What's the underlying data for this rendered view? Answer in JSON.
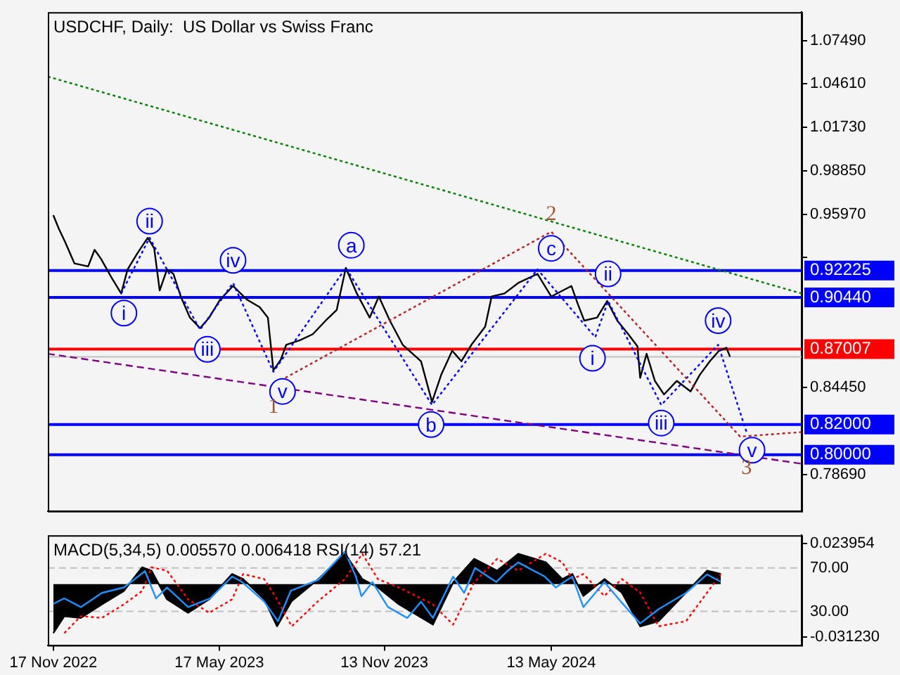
{
  "chart_data": [
    {
      "type": "line",
      "title": "USDCHF, Daily:  US Dollar vs Swiss Franc",
      "xlim": [
        "2022-11-11",
        "2025-02-10"
      ],
      "ylim": [
        0.7626,
        1.0938
      ],
      "yticks": [
        {
          "value": 1.0749,
          "label": "1.07490"
        },
        {
          "value": 1.0461,
          "label": "1.04610"
        },
        {
          "value": 1.0173,
          "label": "1.01730"
        },
        {
          "value": 0.9885,
          "label": "0.98850"
        },
        {
          "value": 0.9597,
          "label": "0.95970"
        },
        {
          "value": 0.9309,
          "label": null
        },
        {
          "value": 0.8445,
          "label": "0.84450"
        },
        {
          "value": 0.7869,
          "label": "0.78690"
        }
      ],
      "tick_labels": "y",
      "grid": false,
      "marker": "none",
      "series": [
        {
          "color": "#000000",
          "x": [
            "2022-11-17",
            "2022-11-23",
            "2022-11-30",
            "2022-12-10",
            "2022-12-25",
            "2023-01-01",
            "2023-01-08",
            "2023-01-20",
            "2023-01-30",
            "2023-02-06",
            "2023-02-17",
            "2023-02-28",
            "2023-03-07",
            "2023-03-13",
            "2023-03-21",
            "2023-03-28",
            "2023-04-05",
            "2023-04-15",
            "2023-04-26",
            "2023-05-06",
            "2023-05-18",
            "2023-06-01",
            "2023-06-16",
            "2023-06-30",
            "2023-07-09",
            "2023-07-15",
            "2023-07-23",
            "2023-07-29",
            "2023-08-13",
            "2023-08-27",
            "2023-09-10",
            "2023-09-22",
            "2023-10-02",
            "2023-10-14",
            "2023-10-28",
            "2023-11-07",
            "2023-11-19",
            "2023-12-03",
            "2023-12-23",
            "2024-01-04",
            "2024-01-14",
            "2024-01-26",
            "2024-02-05",
            "2024-02-16",
            "2024-03-02",
            "2024-03-09",
            "2024-03-23",
            "2024-04-07",
            "2024-04-28",
            "2024-05-13",
            "2024-06-04",
            "2024-06-11",
            "2024-06-18",
            "2024-07-02",
            "2024-07-13",
            "2024-07-24",
            "2024-08-05",
            "2024-08-15",
            "2024-08-18",
            "2024-08-25",
            "2024-09-03",
            "2024-09-13",
            "2024-09-27",
            "2024-10-12",
            "2024-10-22",
            "2024-11-02",
            "2024-11-12",
            "2024-11-20",
            "2024-11-24"
          ],
          "values": [
            0.959,
            0.95,
            0.941,
            0.927,
            0.925,
            0.936,
            0.93,
            0.917,
            0.907,
            0.923,
            0.934,
            0.944,
            0.937,
            0.909,
            0.923,
            0.92,
            0.905,
            0.891,
            0.884,
            0.891,
            0.903,
            0.912,
            0.903,
            0.898,
            0.891,
            0.856,
            0.863,
            0.873,
            0.876,
            0.88,
            0.889,
            0.896,
            0.924,
            0.907,
            0.891,
            0.905,
            0.889,
            0.873,
            0.862,
            0.835,
            0.853,
            0.869,
            0.862,
            0.873,
            0.885,
            0.905,
            0.907,
            0.914,
            0.92,
            0.905,
            0.912,
            0.9,
            0.889,
            0.891,
            0.902,
            0.889,
            0.88,
            0.872,
            0.851,
            0.867,
            0.849,
            0.84,
            0.849,
            0.842,
            0.853,
            0.862,
            0.869,
            0.871,
            0.865
          ]
        },
        {
          "color": "#0000ff",
          "line_style": "dotted",
          "x": [
            "2023-01-30",
            "2023-03-02",
            "2023-04-26",
            "2023-06-01",
            "2023-07-15",
            "2023-10-02",
            "2024-01-04",
            "2024-04-28",
            "2024-06-30",
            "2024-07-14",
            "2024-09-10",
            "2024-11-11",
            "2024-12-12"
          ],
          "values": [
            0.907,
            0.944,
            0.883,
            0.914,
            0.855,
            0.924,
            0.833,
            0.923,
            0.878,
            0.902,
            0.833,
            0.873,
            0.815
          ]
        },
        {
          "color": "#b22222",
          "line_style": "dotted",
          "x": [
            "2023-07-28",
            "2024-05-13",
            "2024-12-05",
            "2025-02-10"
          ],
          "values": [
            0.851,
            0.948,
            0.812,
            0.815
          ]
        },
        {
          "color": "#008000",
          "line_style": "dotted",
          "x": [
            "2022-11-11",
            "2025-02-10"
          ],
          "values": [
            1.051,
            0.907
          ]
        },
        {
          "color": "#800080",
          "line_style": "dashed",
          "x": [
            "2022-11-11",
            "2025-02-10"
          ],
          "values": [
            0.867,
            0.794
          ]
        }
      ],
      "ref_lines": [
        {
          "axis": "y",
          "value": 0.865,
          "color": "#c0c0c0"
        },
        {
          "axis": "y",
          "value": 0.92225,
          "label": "0.92225",
          "color": "#0000ff"
        },
        {
          "axis": "y",
          "value": 0.9044,
          "label": "0.90440",
          "color": "#0000ff"
        },
        {
          "axis": "y",
          "value": 0.87007,
          "label": "0.87007",
          "color": "#ff0000"
        },
        {
          "axis": "y",
          "value": 0.82,
          "label": "0.82000",
          "color": "#0000ff"
        },
        {
          "axis": "y",
          "value": 0.8,
          "label": "0.80000",
          "color": "#0000ff"
        }
      ],
      "annotations": [
        {
          "text": "i",
          "x": "2023-02-02",
          "y": 0.894
        },
        {
          "text": "ii",
          "x": "2023-03-02",
          "y": 0.955
        },
        {
          "text": "iii",
          "x": "2023-05-04",
          "y": 0.87
        },
        {
          "text": "iv",
          "x": "2023-06-01",
          "y": 0.929
        },
        {
          "text": "v",
          "x": "2023-07-25",
          "y": 0.842
        },
        {
          "text": "1",
          "x": "2023-07-15",
          "y": 0.856
        },
        {
          "text": "a",
          "x": "2023-10-08",
          "y": 0.939
        },
        {
          "text": "b",
          "x": "2024-01-03",
          "y": 0.82
        },
        {
          "text": "c",
          "x": "2024-05-13",
          "y": 0.937
        },
        {
          "text": "2",
          "x": "2024-05-13",
          "y": 0.948
        },
        {
          "text": "i",
          "x": "2024-06-27",
          "y": 0.864
        },
        {
          "text": "ii",
          "x": "2024-07-14",
          "y": 0.92
        },
        {
          "text": "iii",
          "x": "2024-09-10",
          "y": 0.821
        },
        {
          "text": "iv",
          "x": "2024-11-11",
          "y": 0.889
        },
        {
          "text": "v",
          "x": "2024-12-18",
          "y": 0.803
        },
        {
          "text": "3",
          "x": "2024-12-12",
          "y": 0.815
        }
      ]
    },
    {
      "type": "area",
      "title": "MACD(5,34,5) 0.005570 0.006418 RSI(14) 57.21",
      "xlim": [
        "2022-11-11",
        "2025-02-10"
      ],
      "xticks": [
        {
          "value": "2022-11-17",
          "label": "17 Nov 2022"
        },
        {
          "value": "2023-05-17",
          "label": "17 May 2023"
        },
        {
          "value": "2023-11-13",
          "label": "13 Nov 2023"
        },
        {
          "value": "2024-05-13",
          "label": "13 May 2024"
        }
      ],
      "ylim": [
        -0.0362,
        0.029
      ],
      "yticks": [
        {
          "value": 0.023954,
          "label": "0.023954"
        },
        {
          "value": -0.03123,
          "label": "-0.031230"
        }
      ],
      "y2lim": [
        -1,
        100
      ],
      "y2ticks": [
        {
          "value": 70,
          "label": "70.00"
        },
        {
          "value": 30,
          "label": "30.00"
        }
      ],
      "grid": false,
      "marker": "none",
      "series": [
        {
          "color": "#000000",
          "x": [
            "2022-11-17",
            "2022-11-29",
            "2022-12-17",
            "2023-01-09",
            "2023-02-02",
            "2023-02-22",
            "2023-03-04",
            "2023-03-21",
            "2023-04-13",
            "2023-05-06",
            "2023-05-31",
            "2023-06-12",
            "2023-07-05",
            "2023-07-19",
            "2023-08-04",
            "2023-09-02",
            "2023-10-01",
            "2023-10-20",
            "2023-11-06",
            "2023-11-29",
            "2024-01-05",
            "2024-01-27",
            "2024-02-19",
            "2024-03-15",
            "2024-04-07",
            "2024-05-07",
            "2024-05-25",
            "2024-06-05",
            "2024-06-17",
            "2024-07-10",
            "2024-07-29",
            "2024-08-18",
            "2024-09-07",
            "2024-10-07",
            "2024-10-30",
            "2024-11-14"
          ],
          "values": [
            -0.029,
            -0.019,
            -0.02,
            -0.012,
            -0.004,
            0.01,
            0.008,
            -0.009,
            -0.017,
            -0.009,
            0.006,
            0.003,
            -0.009,
            -0.025,
            -0.01,
            0.003,
            0.018,
            0.003,
            -0.002,
            -0.012,
            -0.024,
            0.001,
            0.015,
            0.008,
            0.018,
            0.013,
            0.003,
            0.006,
            -0.007,
            0.003,
            -0.005,
            -0.025,
            -0.022,
            -0.005,
            0.008,
            0.006
          ]
        },
        {
          "type": "line",
          "color": "#ff0000",
          "line_style": "dotted",
          "x": [
            "2022-11-29",
            "2022-12-17",
            "2023-01-09",
            "2023-02-02",
            "2023-02-22",
            "2023-03-04",
            "2023-03-21",
            "2023-04-13",
            "2023-05-06",
            "2023-05-31",
            "2023-06-12",
            "2023-07-05",
            "2023-07-19",
            "2023-08-04",
            "2023-09-02",
            "2023-10-01",
            "2023-10-20",
            "2023-11-06",
            "2023-11-29",
            "2024-01-05",
            "2024-01-27",
            "2024-02-19",
            "2024-03-15",
            "2024-04-07",
            "2024-05-07",
            "2024-05-25",
            "2024-06-05",
            "2024-06-17",
            "2024-07-10",
            "2024-07-29",
            "2024-08-18",
            "2024-09-07",
            "2024-10-07",
            "2024-10-30",
            "2024-11-14"
          ],
          "values": [
            -0.029,
            -0.019,
            -0.02,
            -0.012,
            -0.004,
            0.01,
            0.008,
            -0.009,
            -0.017,
            -0.009,
            0.006,
            0.003,
            -0.009,
            -0.025,
            -0.01,
            0.003,
            0.018,
            0.003,
            -0.002,
            -0.012,
            -0.024,
            0.001,
            0.015,
            0.008,
            0.018,
            0.013,
            0.003,
            0.006,
            -0.007,
            0.003,
            -0.005,
            -0.025,
            -0.022,
            -0.005,
            0.006
          ]
        },
        {
          "type": "line",
          "axis": "y2",
          "color": "#1e90ff",
          "x": [
            "2022-11-17",
            "2022-11-29",
            "2022-12-17",
            "2023-01-09",
            "2023-02-02",
            "2023-02-25",
            "2023-03-09",
            "2023-03-21",
            "2023-04-13",
            "2023-05-07",
            "2023-05-31",
            "2023-06-11",
            "2023-07-05",
            "2023-07-20",
            "2023-08-03",
            "2023-09-02",
            "2023-10-01",
            "2023-10-13",
            "2023-10-19",
            "2023-10-31",
            "2023-11-17",
            "2023-12-08",
            "2023-12-23",
            "2024-01-05",
            "2024-01-27",
            "2024-02-08",
            "2024-02-20",
            "2024-03-14",
            "2024-03-26",
            "2024-04-07",
            "2024-05-06",
            "2024-05-18",
            "2024-06-05",
            "2024-06-17",
            "2024-07-10",
            "2024-07-28",
            "2024-08-18",
            "2024-09-07",
            "2024-10-07",
            "2024-10-30",
            "2024-11-14"
          ],
          "values": [
            37,
            42,
            34,
            47,
            52,
            67,
            42,
            52,
            34,
            42,
            62,
            57,
            39,
            21,
            49,
            59,
            85,
            62,
            44,
            57,
            34,
            24,
            39,
            24,
            62,
            47,
            70,
            57,
            67,
            75,
            62,
            52,
            62,
            34,
            57,
            39,
            19,
            32,
            47,
            64,
            57.21
          ]
        }
      ],
      "ref_lines": [
        {
          "axis": "y2",
          "value": 70,
          "color": "#c0c0c0",
          "line_style": "dashed"
        },
        {
          "axis": "y2",
          "value": 30,
          "color": "#c0c0c0",
          "line_style": "dashed"
        }
      ]
    }
  ]
}
